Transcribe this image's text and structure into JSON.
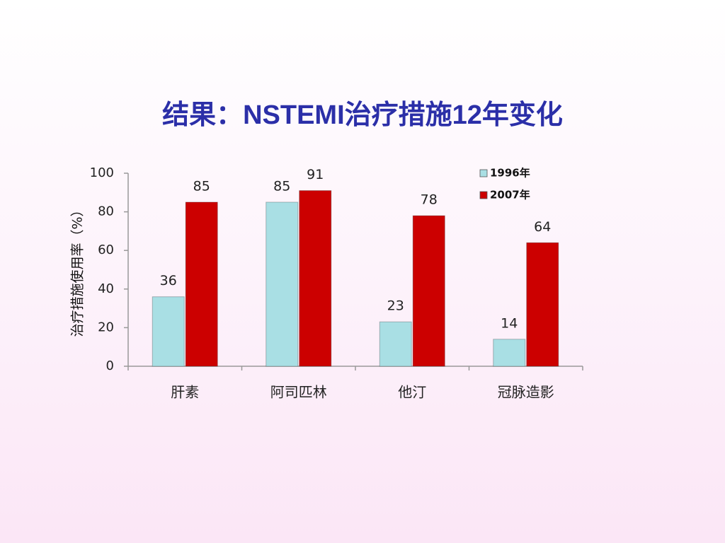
{
  "chart_data": {
    "type": "bar",
    "title": "结果：NSTEMI治疗措施12年变化",
    "y_label": "治疗措施使用率（%）",
    "categories": [
      "肝素",
      "阿司匹林",
      "他汀",
      "冠脉造影"
    ],
    "series": [
      {
        "name": "1996年",
        "color": "#a9dfe4",
        "values": [
          36,
          85,
          23,
          14
        ]
      },
      {
        "name": "2007年",
        "color": "#cc0000",
        "values": [
          85,
          91,
          78,
          64
        ]
      }
    ],
    "ylim": [
      0,
      100
    ],
    "yticks": [
      0,
      20,
      40,
      60,
      80,
      100
    ],
    "grid": false,
    "legend": "top-right"
  }
}
